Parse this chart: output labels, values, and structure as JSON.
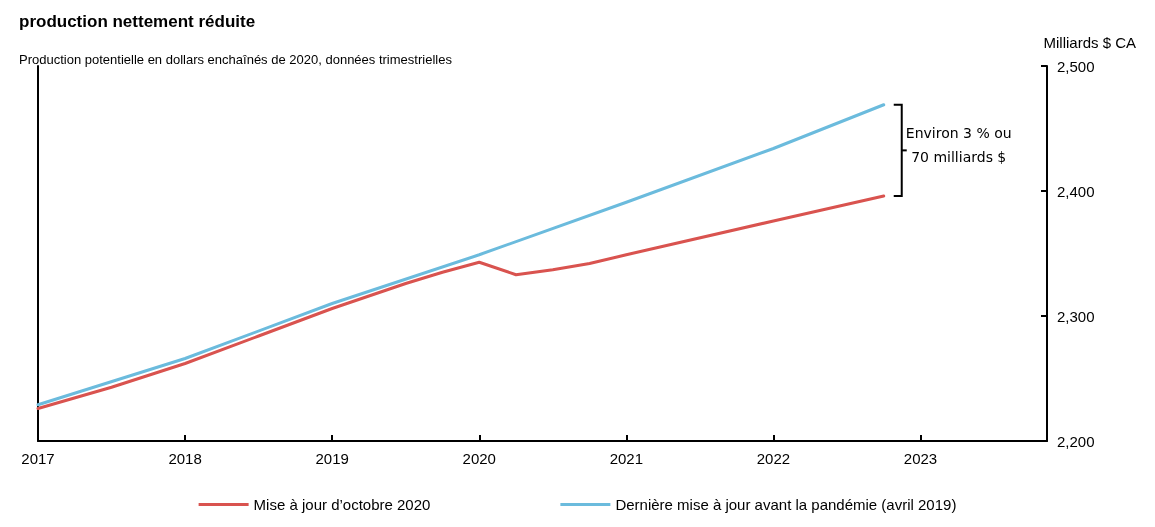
{
  "chart_data": {
    "type": "line",
    "title": "production nettement réduite",
    "subtitle": "Production potentielle en dollars enchaînés de 2020, données trimestrielles",
    "ylabel": "Milliards $ CA",
    "annotations": [
      "Environ 3 % ou\n70 milliards $"
    ],
    "xlim": [
      2017,
      2023.86
    ],
    "xticks": [
      2017,
      2018,
      2019,
      2020,
      2021,
      2022,
      2023
    ],
    "ylim": [
      2200,
      2500
    ],
    "yticks": [
      {
        "value": 2200,
        "label": "2,200"
      },
      {
        "value": 2300,
        "label": "2,300"
      },
      {
        "value": 2400,
        "label": "2,400"
      },
      {
        "value": 2500,
        "label": "2,500"
      }
    ],
    "grid": false,
    "legend": "bottom",
    "marker": "none",
    "line_style": "solid",
    "series": [
      {
        "name": "Mise à jour d’octobre 2020",
        "color": "#d9534f",
        "x": [
          2017,
          2017.5,
          2018,
          2018.5,
          2019,
          2019.5,
          2019.75,
          2020,
          2020.25,
          2020.5,
          2020.75,
          2021,
          2022,
          2022.75
        ],
        "values": [
          2226,
          2243,
          2262,
          2284,
          2306,
          2326,
          2335,
          2343,
          2333,
          2337,
          2342,
          2349,
          2376,
          2396
        ]
      },
      {
        "name": "Dernière mise à jour avant la pandémie (avril 2019)",
        "color": "#6bbbdd",
        "x": [
          2017,
          2018,
          2019,
          2020,
          2021,
          2022,
          2022.75
        ],
        "values": [
          2229,
          2266,
          2310,
          2349,
          2391,
          2434,
          2469
        ]
      }
    ]
  }
}
